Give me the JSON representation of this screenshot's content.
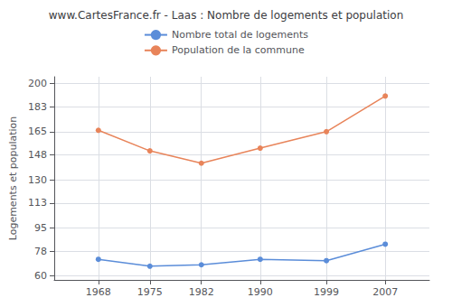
{
  "chart_data": {
    "type": "line",
    "title": "www.CartesFrance.fr - Laas : Nombre de logements et population",
    "ylabel": "Logements et population",
    "x": [
      1968,
      1975,
      1982,
      1990,
      1999,
      2007
    ],
    "series": [
      {
        "name": "Nombre total de logements",
        "color": "#5b8dd9",
        "values": [
          72,
          67,
          68,
          72,
          71,
          83
        ]
      },
      {
        "name": "Population de la commune",
        "color": "#e8845a",
        "values": [
          166,
          151,
          142,
          153,
          165,
          191
        ]
      }
    ],
    "xlim": [
      1962,
      2013
    ],
    "xticks": [
      1968,
      1975,
      1982,
      1990,
      1999,
      2007
    ],
    "ylim": [
      57,
      205
    ],
    "yticks": [
      60,
      78,
      95,
      113,
      130,
      148,
      165,
      183,
      200
    ],
    "grid": true,
    "legend": "top",
    "marker": "circle"
  }
}
